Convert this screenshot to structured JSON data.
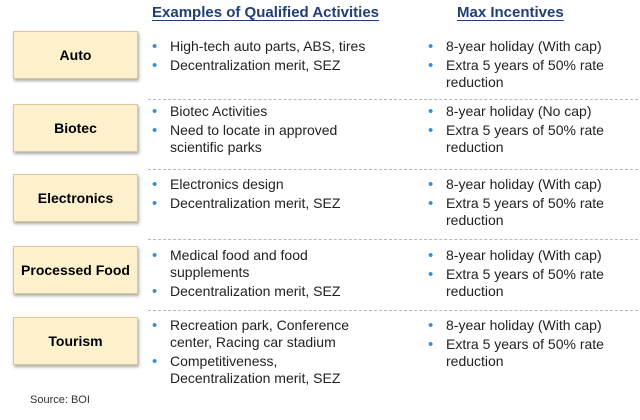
{
  "headers": {
    "activities": "Examples of Qualified Activities",
    "incentives": "Max Incentives"
  },
  "rows": [
    {
      "sector": "Auto",
      "activities": [
        "High-tech auto parts, ABS, tires",
        "Decentralization merit, SEZ"
      ],
      "incentives": [
        "8-year holiday (With cap)",
        "Extra 5 years of 50% rate reduction"
      ]
    },
    {
      "sector": "Biotec",
      "activities": [
        "Biotec Activities",
        "Need to locate in approved scientific parks"
      ],
      "incentives": [
        "8-year holiday (No cap)",
        "Extra 5 years of 50% rate reduction"
      ]
    },
    {
      "sector": "Electronics",
      "activities": [
        "Electronics design",
        "Decentralization merit, SEZ"
      ],
      "incentives": [
        "8-year holiday (With cap)",
        "Extra 5 years of 50% rate reduction"
      ]
    },
    {
      "sector": "Processed Food",
      "activities": [
        "Medical food and food supplements",
        "Decentralization merit, SEZ"
      ],
      "incentives": [
        "8-year holiday (With cap)",
        "Extra 5 years of 50% rate reduction"
      ]
    },
    {
      "sector": "Tourism",
      "activities": [
        "Recreation park, Conference center, Racing car stadium",
        "Competitiveness, Decentralization merit, SEZ"
      ],
      "incentives": [
        "8-year holiday (With cap)",
        "Extra 5 years of 50% rate reduction"
      ]
    }
  ],
  "source": "Source: BOI"
}
